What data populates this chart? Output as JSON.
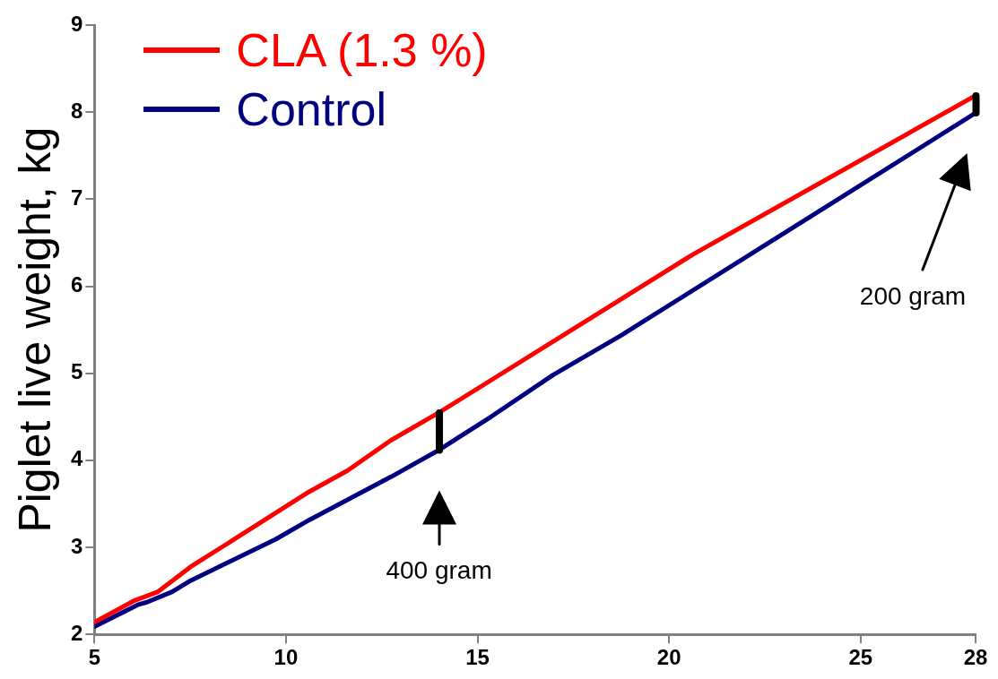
{
  "chart_data": {
    "type": "line",
    "ylabel": "Piglet live weight, kg",
    "xlim": [
      5,
      28
    ],
    "xticks": [
      5,
      10,
      15,
      20,
      25,
      28
    ],
    "ylim": [
      2,
      9
    ],
    "yticks": [
      2,
      3,
      4,
      5,
      6,
      7,
      8,
      9
    ],
    "grid": false,
    "legend": "top left",
    "marker": "none",
    "line_style": "solid",
    "series": [
      {
        "name": "CLA (1.3 %)",
        "color": "#ff0000",
        "x": [
          5,
          6.05,
          6.66,
          7.52,
          8.57,
          10.53,
          11.6,
          12.74,
          14,
          20.64,
          28
        ],
        "values": [
          2.14,
          2.39,
          2.49,
          2.78,
          3.07,
          3.62,
          3.88,
          4.23,
          4.55,
          6.37,
          8.19
        ]
      },
      {
        "name": "Control",
        "color": "#000080",
        "x": [
          5,
          6.13,
          6.37,
          7.03,
          7.52,
          9.72,
          10.63,
          12.74,
          14,
          15.35,
          16.97,
          18.73,
          28
        ],
        "values": [
          2.09,
          2.34,
          2.37,
          2.49,
          2.62,
          3.09,
          3.32,
          3.81,
          4.12,
          4.5,
          4.98,
          5.43,
          7.99
        ]
      }
    ],
    "annotations": [
      "400 gram",
      "200 gram"
    ]
  }
}
